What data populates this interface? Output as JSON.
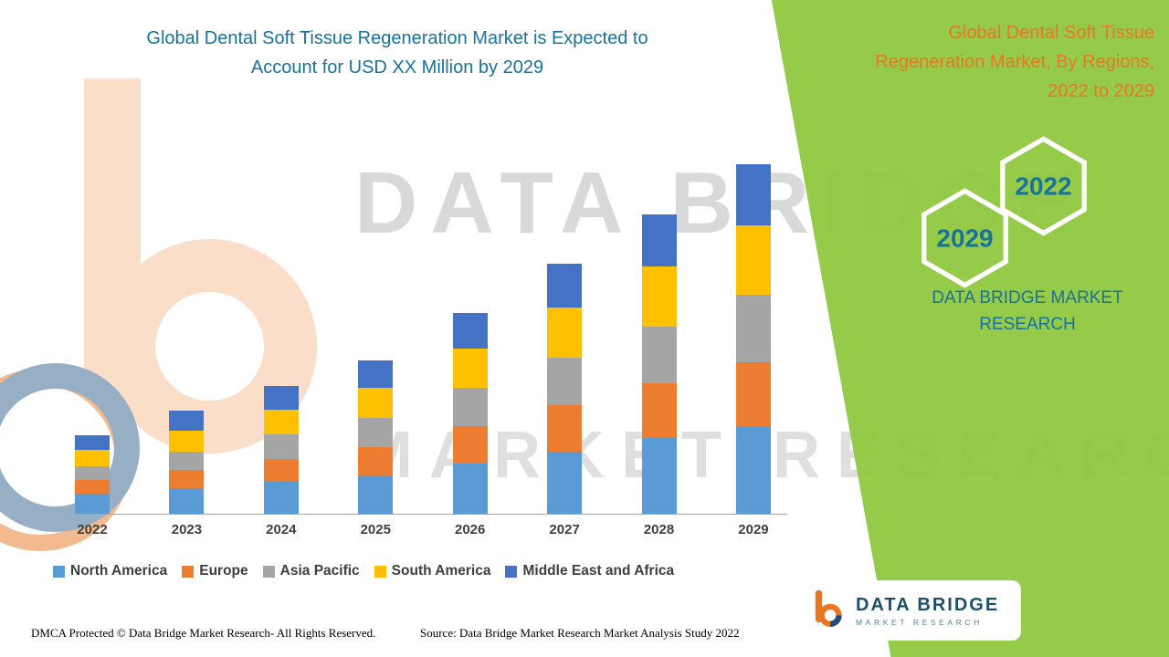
{
  "header": {
    "title_lines": [
      "Global Dental Soft Tissue Regeneration Market is Expected to",
      "Account for USD XX Million by 2029"
    ]
  },
  "panel": {
    "title_lines": [
      "Global Dental Soft Tissue",
      "Regeneration Market, By Regions,",
      "2022 to 2029"
    ],
    "hexagon_left": "2029",
    "hexagon_right": "2022",
    "brand_lines": [
      "DATA BRIDGE MARKET",
      "RESEARCH"
    ],
    "colors": {
      "background": "#8FC73E",
      "title_orange": "#E87722",
      "teal": "#17739C",
      "hexagon_outline": "#FFFFFF"
    }
  },
  "logo_card": {
    "brand": "DATA BRIDGE",
    "sub": "MARKET RESEARCH"
  },
  "watermark": {
    "lines": [
      "DATA BRIDGE",
      "MARKET RESEARCH"
    ]
  },
  "footer": {
    "dmca": "DMCA Protected © Data Bridge Market Research- All Rights Reserved.",
    "source": "Source: Data Bridge Market Research Market Analysis Study 2022"
  },
  "chart_data": {
    "type": "bar",
    "stacked": true,
    "title": "Global Dental Soft Tissue Regeneration Market is Expected to Account for USD XX Million by 2029",
    "xlabel": "",
    "ylabel": "",
    "ylim": [
      0,
      400
    ],
    "y_axis_shown": false,
    "grid": false,
    "legend_position": "bottom",
    "note": "No numeric axis or data labels shown; segment values estimated from bar heights (relative units).",
    "categories": [
      "2022",
      "2023",
      "2024",
      "2025",
      "2026",
      "2027",
      "2028",
      "2029"
    ],
    "series": [
      {
        "name": "North America",
        "color": "#5B9BD5",
        "values": [
          22,
          28,
          35,
          42,
          55,
          68,
          82,
          95
        ]
      },
      {
        "name": "Europe",
        "color": "#ED7D31",
        "values": [
          15,
          20,
          25,
          30,
          40,
          50,
          60,
          70
        ]
      },
      {
        "name": "Asia Pacific",
        "color": "#A5A5A5",
        "values": [
          15,
          20,
          26,
          32,
          42,
          52,
          62,
          73
        ]
      },
      {
        "name": "South America",
        "color": "#FFC000",
        "values": [
          18,
          22,
          27,
          33,
          43,
          54,
          65,
          76
        ]
      },
      {
        "name": "Middle East and Africa",
        "color": "#4472C4",
        "values": [
          15,
          22,
          26,
          30,
          38,
          48,
          57,
          66
        ]
      }
    ]
  }
}
